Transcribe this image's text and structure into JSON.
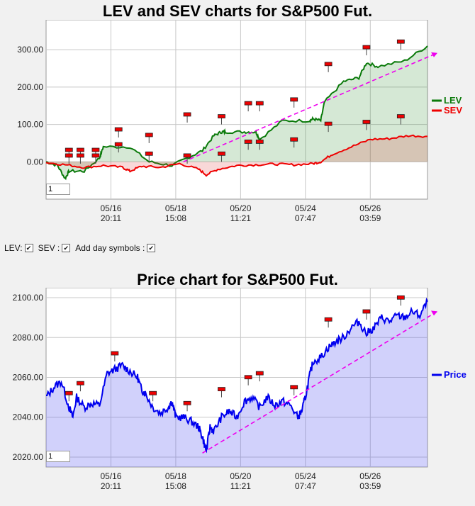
{
  "chart_data": [
    {
      "type": "line",
      "title": "LEV and SEV charts for S&P500 Fut.",
      "ylim": [
        -100,
        380
      ],
      "yticks": [
        "300.00",
        "200.00",
        "100.00",
        "0.00"
      ],
      "ytick_values": [
        300,
        200,
        100,
        0
      ],
      "x_ticks": [
        {
          "date": "05/16",
          "time": "20:11"
        },
        {
          "date": "05/18",
          "time": "15:08"
        },
        {
          "date": "05/20",
          "time": "11:21"
        },
        {
          "date": "05/24",
          "time": "07:47"
        },
        {
          "date": "05/26",
          "time": "03:59"
        }
      ],
      "series": [
        {
          "name": "LEV",
          "color": "#0a7a0a",
          "x": [
            0,
            3,
            5,
            6,
            10,
            14,
            15,
            22,
            27,
            33,
            37,
            41,
            44,
            46,
            47,
            52,
            55,
            56,
            62,
            69,
            70,
            72,
            73,
            78,
            82,
            84,
            87,
            94,
            100
          ],
          "values": [
            0,
            -10,
            -45,
            -25,
            -25,
            10,
            40,
            40,
            0,
            -10,
            10,
            30,
            70,
            80,
            80,
            80,
            80,
            60,
            110,
            110,
            115,
            110,
            160,
            215,
            225,
            265,
            255,
            270,
            310
          ]
        },
        {
          "name": "SEV",
          "color": "#ee0000",
          "x": [
            0,
            5,
            10,
            15,
            20,
            22,
            25,
            30,
            35,
            40,
            42,
            45,
            50,
            55,
            60,
            65,
            70,
            72,
            75,
            80,
            85,
            90,
            95,
            100
          ],
          "values": [
            -2,
            -8,
            -15,
            -10,
            -15,
            -25,
            -12,
            -15,
            -5,
            -20,
            -35,
            -20,
            -10,
            -8,
            -6,
            -8,
            -5,
            0,
            20,
            40,
            60,
            62,
            70,
            68
          ]
        }
      ],
      "trendline": {
        "x": [
          36,
          100
        ],
        "values": [
          0,
          280
        ]
      },
      "day_markers": [
        {
          "x": 6,
          "value": 10
        },
        {
          "x": 9,
          "value": 10
        },
        {
          "x": 13,
          "value": 10
        },
        {
          "x": 6,
          "value": -5
        },
        {
          "x": 9,
          "value": -5
        },
        {
          "x": 13,
          "value": -5
        },
        {
          "x": 19,
          "value": 65
        },
        {
          "x": 19,
          "value": 25
        },
        {
          "x": 27,
          "value": 50
        },
        {
          "x": 27,
          "value": 0
        },
        {
          "x": 37,
          "value": 105
        },
        {
          "x": 37,
          "value": -5
        },
        {
          "x": 46,
          "value": 100
        },
        {
          "x": 46,
          "value": 0
        },
        {
          "x": 53,
          "value": 135
        },
        {
          "x": 53,
          "value": 32
        },
        {
          "x": 56,
          "value": 135
        },
        {
          "x": 56,
          "value": 32
        },
        {
          "x": 65,
          "value": 145
        },
        {
          "x": 65,
          "value": 38
        },
        {
          "x": 74,
          "value": 240
        },
        {
          "x": 74,
          "value": 80
        },
        {
          "x": 84,
          "value": 285
        },
        {
          "x": 84,
          "value": 85
        },
        {
          "x": 93,
          "value": 300
        },
        {
          "x": 93,
          "value": 100
        }
      ]
    },
    {
      "type": "line",
      "title": "Price chart for S&P500 Fut.",
      "ylim": [
        2015,
        2105
      ],
      "yticks": [
        "2100.00",
        "2080.00",
        "2060.00",
        "2040.00",
        "2020.00"
      ],
      "ytick_values": [
        2100,
        2080,
        2060,
        2040,
        2020
      ],
      "x_ticks": [
        {
          "date": "05/16",
          "time": "20:11"
        },
        {
          "date": "05/18",
          "time": "15:08"
        },
        {
          "date": "05/20",
          "time": "11:21"
        },
        {
          "date": "05/24",
          "time": "07:47"
        },
        {
          "date": "05/26",
          "time": "03:59"
        }
      ],
      "series": [
        {
          "name": "Price",
          "color": "#0000ee",
          "x": [
            0,
            2,
            4,
            6,
            7,
            8,
            10,
            12,
            14,
            16,
            18,
            20,
            22,
            24,
            25,
            26,
            28,
            30,
            32,
            33,
            34,
            36,
            38,
            40,
            41,
            42,
            43,
            44,
            46,
            48,
            50,
            52,
            54,
            56,
            58,
            60,
            62,
            64,
            66,
            67,
            68,
            69,
            70,
            72,
            74,
            76,
            78,
            80,
            82,
            84,
            86,
            88,
            90,
            92,
            94,
            96,
            98,
            100
          ],
          "values": [
            2050,
            2055,
            2058,
            2045,
            2040,
            2050,
            2045,
            2047,
            2046,
            2062,
            2064,
            2066,
            2063,
            2060,
            2054,
            2052,
            2045,
            2042,
            2045,
            2048,
            2040,
            2040,
            2038,
            2035,
            2030,
            2023,
            2035,
            2033,
            2040,
            2043,
            2040,
            2048,
            2050,
            2045,
            2050,
            2046,
            2048,
            2046,
            2040,
            2043,
            2050,
            2060,
            2068,
            2070,
            2075,
            2078,
            2080,
            2085,
            2088,
            2082,
            2085,
            2090,
            2088,
            2091,
            2090,
            2093,
            2091,
            2098
          ]
        }
      ],
      "trendline": {
        "x": [
          41,
          100
        ],
        "values": [
          2022,
          2091
        ]
      },
      "day_markers": [
        {
          "x": 6,
          "value": 2048
        },
        {
          "x": 9,
          "value": 2053
        },
        {
          "x": 18,
          "value": 2068
        },
        {
          "x": 28,
          "value": 2048
        },
        {
          "x": 37,
          "value": 2043
        },
        {
          "x": 46,
          "value": 2050
        },
        {
          "x": 53,
          "value": 2056
        },
        {
          "x": 56,
          "value": 2058
        },
        {
          "x": 65,
          "value": 2051
        },
        {
          "x": 74,
          "value": 2085
        },
        {
          "x": 84,
          "value": 2089
        },
        {
          "x": 93,
          "value": 2096
        }
      ]
    }
  ],
  "controls": {
    "lev_label": "LEV:",
    "sev_label": "SEV :",
    "day_symbols_label": "Add day symbols :",
    "check_glyph": "✔"
  },
  "inputs": {
    "top_value": "1",
    "bottom_value": "1"
  }
}
